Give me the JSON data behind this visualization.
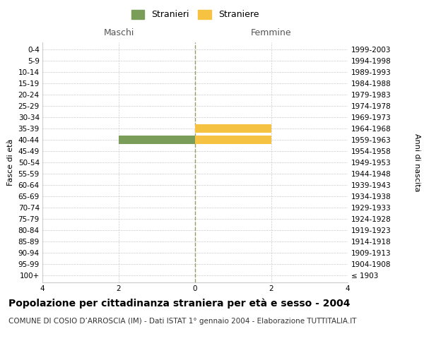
{
  "age_groups": [
    "100+",
    "95-99",
    "90-94",
    "85-89",
    "80-84",
    "75-79",
    "70-74",
    "65-69",
    "60-64",
    "55-59",
    "50-54",
    "45-49",
    "40-44",
    "35-39",
    "30-34",
    "25-29",
    "20-24",
    "15-19",
    "10-14",
    "5-9",
    "0-4"
  ],
  "birth_years": [
    "≤ 1903",
    "1904-1908",
    "1909-1913",
    "1914-1918",
    "1919-1923",
    "1924-1928",
    "1929-1933",
    "1934-1938",
    "1939-1943",
    "1944-1948",
    "1949-1953",
    "1954-1958",
    "1959-1963",
    "1964-1968",
    "1969-1973",
    "1974-1978",
    "1979-1983",
    "1984-1988",
    "1989-1993",
    "1994-1998",
    "1999-2003"
  ],
  "maschi": [
    0,
    0,
    0,
    0,
    0,
    0,
    0,
    0,
    0,
    0,
    0,
    0,
    2,
    0,
    0,
    0,
    0,
    0,
    0,
    0,
    0
  ],
  "femmine": [
    0,
    0,
    0,
    0,
    0,
    0,
    0,
    0,
    0,
    0,
    0,
    0,
    2,
    2,
    0,
    0,
    0,
    0,
    0,
    0,
    0
  ],
  "maschi_color": "#7a9e5a",
  "femmine_color": "#f5c242",
  "xlim": 4,
  "ylabel_left": "Fasce di età",
  "ylabel_right": "Anni di nascita",
  "xlabel_maschi": "Maschi",
  "xlabel_femmine": "Femmine",
  "legend_maschi": "Stranieri",
  "legend_femmine": "Straniere",
  "title": "Popolazione per cittadinanza straniera per età e sesso - 2004",
  "subtitle": "COMUNE DI COSIO D’ARROSCIA (IM) - Dati ISTAT 1° gennaio 2004 - Elaborazione TUTTITALIA.IT",
  "title_fontsize": 10,
  "subtitle_fontsize": 7.5,
  "bar_height": 0.75,
  "background_color": "#ffffff",
  "grid_color": "#cccccc",
  "center_line_color": "#999966",
  "tick_label_fontsize": 7.5,
  "header_fontsize": 9
}
